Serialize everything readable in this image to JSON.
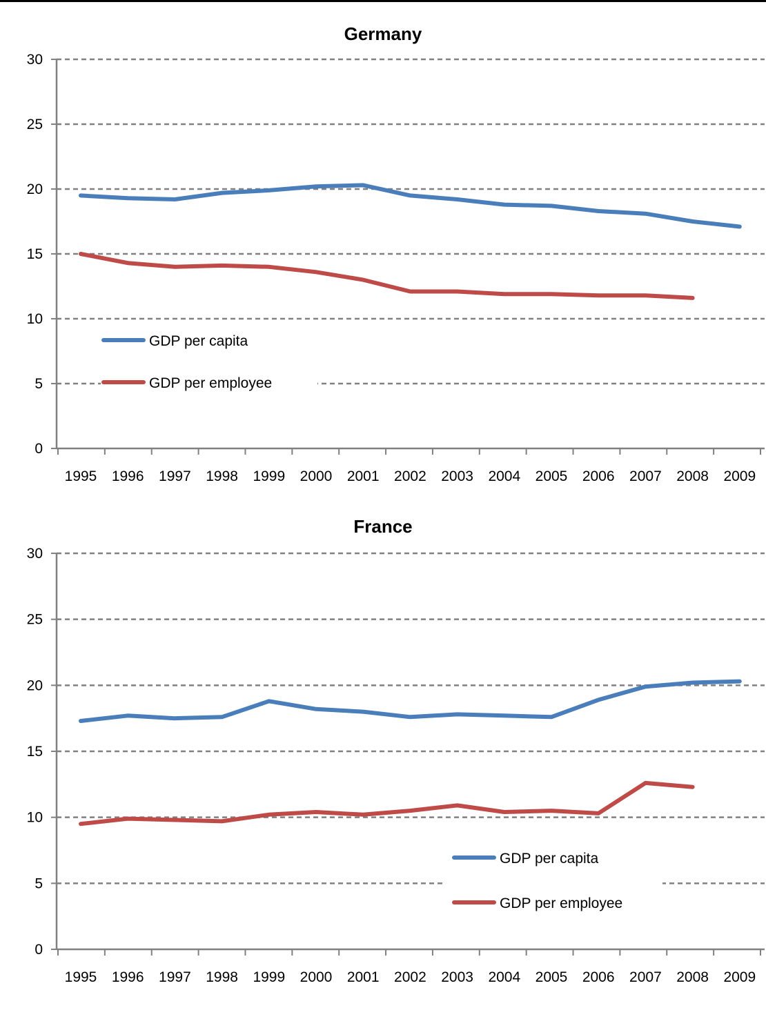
{
  "chart_data": [
    {
      "type": "line",
      "title": "Germany",
      "xlabel": "",
      "ylabel": "",
      "categories": [
        "1995",
        "1996",
        "1997",
        "1998",
        "1999",
        "2000",
        "2001",
        "2002",
        "2003",
        "2004",
        "2005",
        "2006",
        "2007",
        "2008",
        "2009"
      ],
      "ylim": [
        0,
        30
      ],
      "yticks": [
        "0",
        "5",
        "10",
        "15",
        "20",
        "25",
        "30"
      ],
      "grid": true,
      "legend_position": "left-middle",
      "series": [
        {
          "name": "GDP per capita",
          "color": "#4a7ebb",
          "values": [
            19.5,
            19.3,
            19.2,
            19.7,
            19.9,
            20.2,
            20.3,
            19.5,
            19.2,
            18.8,
            18.7,
            18.3,
            18.1,
            17.5,
            17.1
          ]
        },
        {
          "name": "GDP per employee",
          "color": "#be4b48",
          "values": [
            15.0,
            14.3,
            14.0,
            14.1,
            14.0,
            13.6,
            13.0,
            12.1,
            12.1,
            11.9,
            11.9,
            11.8,
            11.8,
            11.6,
            null
          ]
        }
      ]
    },
    {
      "type": "line",
      "title": "France",
      "xlabel": "",
      "ylabel": "",
      "categories": [
        "1995",
        "1996",
        "1997",
        "1998",
        "1999",
        "2000",
        "2001",
        "2002",
        "2003",
        "2004",
        "2005",
        "2006",
        "2007",
        "2008",
        "2009"
      ],
      "ylim": [
        0,
        30
      ],
      "yticks": [
        "0",
        "5",
        "10",
        "15",
        "20",
        "25",
        "30"
      ],
      "grid": true,
      "legend_position": "right-lower",
      "series": [
        {
          "name": "GDP per capita",
          "color": "#4a7ebb",
          "values": [
            17.3,
            17.7,
            17.5,
            17.6,
            18.8,
            18.2,
            18.0,
            17.6,
            17.8,
            17.7,
            17.6,
            18.9,
            19.9,
            20.2,
            20.3
          ]
        },
        {
          "name": "GDP per employee",
          "color": "#be4b48",
          "values": [
            9.5,
            9.9,
            9.8,
            9.7,
            10.2,
            10.4,
            10.2,
            10.5,
            10.9,
            10.4,
            10.5,
            10.3,
            12.6,
            12.3,
            null
          ]
        }
      ]
    }
  ]
}
